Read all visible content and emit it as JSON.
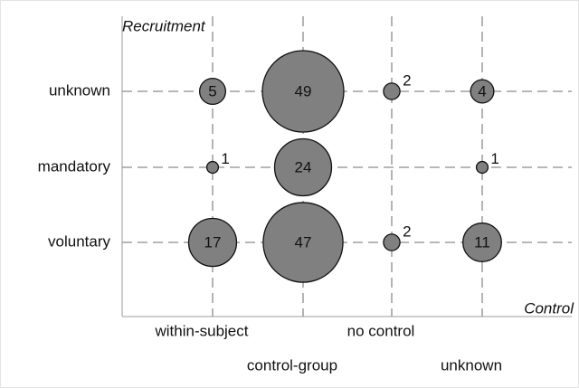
{
  "chart_data": {
    "type": "bubble",
    "x_label": "Control",
    "y_label": "Recruitment",
    "x_categories": [
      "within-subject",
      "control-group",
      "no control",
      "unknown"
    ],
    "y_categories": [
      "voluntary",
      "mandatory",
      "unknown"
    ],
    "color": "#808080",
    "grid": true,
    "points": [
      {
        "x": "within-subject",
        "y": "unknown",
        "value": 5
      },
      {
        "x": "control-group",
        "y": "unknown",
        "value": 49
      },
      {
        "x": "no control",
        "y": "unknown",
        "value": 2
      },
      {
        "x": "unknown",
        "y": "unknown",
        "value": 4
      },
      {
        "x": "within-subject",
        "y": "mandatory",
        "value": 1
      },
      {
        "x": "control-group",
        "y": "mandatory",
        "value": 24
      },
      {
        "x": "unknown",
        "y": "mandatory",
        "value": 1
      },
      {
        "x": "within-subject",
        "y": "voluntary",
        "value": 17
      },
      {
        "x": "control-group",
        "y": "voluntary",
        "value": 47
      },
      {
        "x": "no control",
        "y": "voluntary",
        "value": 2
      },
      {
        "x": "unknown",
        "y": "voluntary",
        "value": 11
      }
    ]
  }
}
